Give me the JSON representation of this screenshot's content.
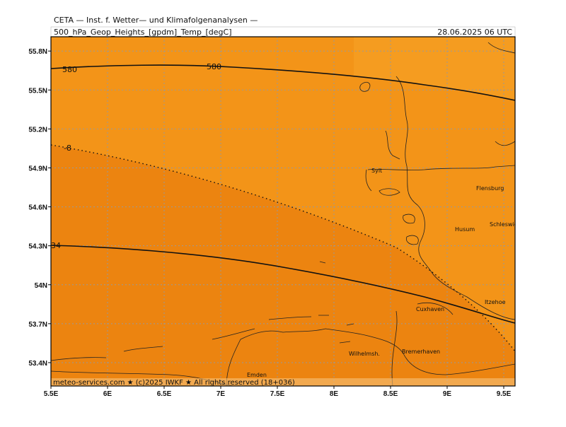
{
  "header": {
    "source": "CETA — Inst. f. Wetter— und Klimafolgenanalysen —",
    "field": "500_hPa_Geop_Heights_[gpdm]_Temp_[degC]",
    "valid_time": "28.06.2025  06 UTC"
  },
  "map": {
    "lonlim": [
      5.5,
      9.6
    ],
    "latlim": [
      53.22,
      55.91
    ],
    "lon_ticks": [
      {
        "value": 5.5,
        "label": "5.5E"
      },
      {
        "value": 6,
        "label": "6E"
      },
      {
        "value": 6.5,
        "label": "6.5E"
      },
      {
        "value": 7,
        "label": "7E"
      },
      {
        "value": 7.5,
        "label": "7.5E"
      },
      {
        "value": 8,
        "label": "8E"
      },
      {
        "value": 8.5,
        "label": "8.5E"
      },
      {
        "value": 9,
        "label": "9E"
      },
      {
        "value": 9.5,
        "label": "9.5E"
      }
    ],
    "lat_ticks": [
      {
        "value": 53.4,
        "label": "53.4N"
      },
      {
        "value": 53.7,
        "label": "53.7N"
      },
      {
        "value": 54,
        "label": "54N"
      },
      {
        "value": 54.3,
        "label": "54.3N"
      },
      {
        "value": 54.6,
        "label": "54.6N"
      },
      {
        "value": 54.9,
        "label": "54.9N"
      },
      {
        "value": 55.2,
        "label": "55.2N"
      },
      {
        "value": 55.5,
        "label": "55.5N"
      },
      {
        "value": 55.8,
        "label": "55.8N"
      }
    ],
    "contour_labels": [
      "580",
      "580",
      "-8",
      "34"
    ],
    "places": [
      "Sylt",
      "Flensburg",
      "Schleswig",
      "Husum",
      "Itzehoe",
      "Cuxhaven",
      "Bremerhaven",
      "Wilhelmsh.",
      "Emden"
    ],
    "footer": "meteo-services.com ★ (c)2025 IWKF ★ All rights reserved (18+036)"
  }
}
